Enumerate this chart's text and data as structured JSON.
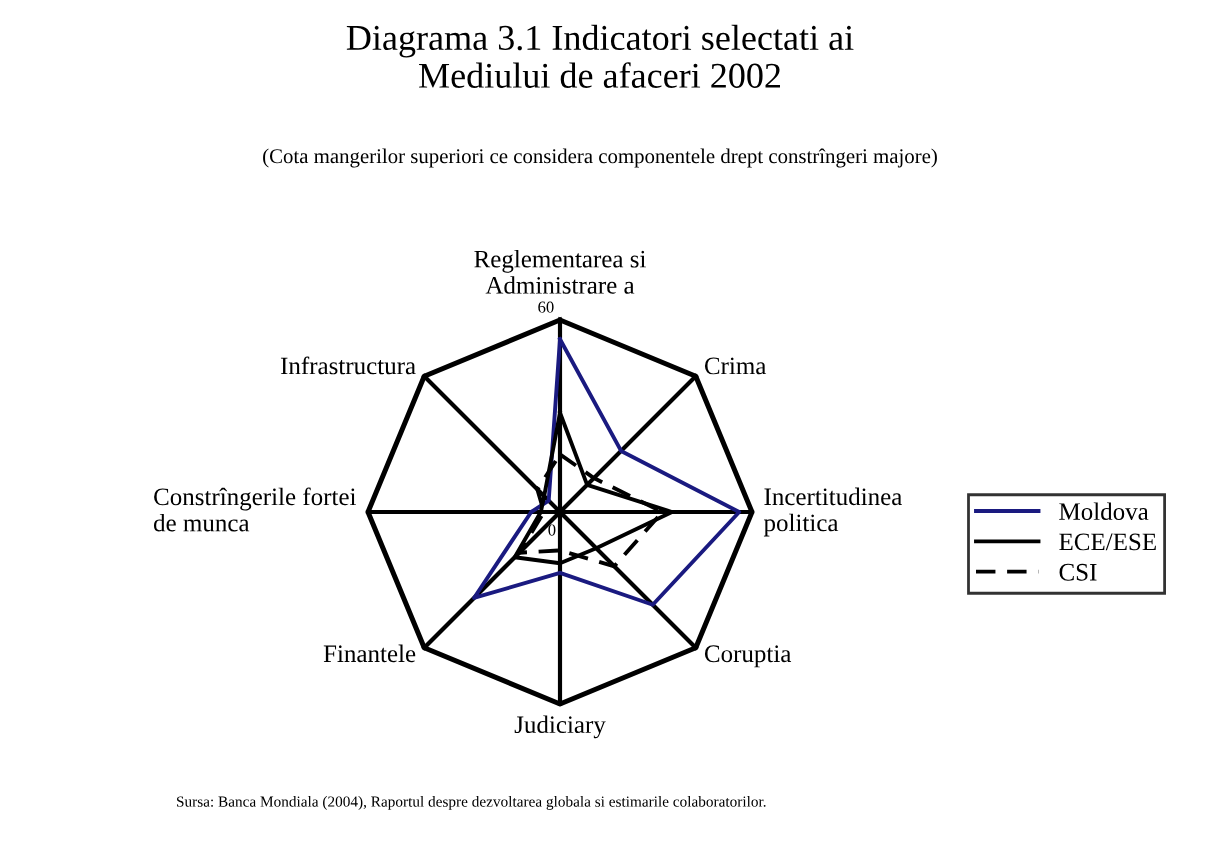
{
  "chart_data": {
    "type": "radar",
    "title": "Diagrama 3.1 Indicatori selectati ai\nMediului de afaceri 2002",
    "subtitle": "(Cota mangerilor superiori ce considera componentele drept constrîngeri majore)",
    "categories": [
      "Reglementarea si\nAdministrare a",
      "Crima",
      "Incertitudinea\npolitica",
      "Coruptia",
      "Judiciary",
      "Finantele",
      "Constrîngerile fortei\nde munca",
      "Infrastructura"
    ],
    "series": [
      {
        "name": "Moldova",
        "color": "#1a1a80",
        "line_style": "solid",
        "values": [
          54,
          27,
          56,
          41,
          19,
          38,
          9,
          5
        ]
      },
      {
        "name": "ECE/ESE",
        "color": "#000000",
        "line_style": "solid",
        "values": [
          31,
          12,
          35,
          16,
          16,
          20,
          6,
          7
        ]
      },
      {
        "name": "CSI",
        "color": "#000000",
        "line_style": "dashed",
        "values": [
          18,
          15,
          32,
          24,
          12,
          18,
          5,
          10
        ]
      }
    ],
    "ylim": [
      0,
      60
    ],
    "yticks": [
      0,
      60
    ],
    "grid": true,
    "legend": "right",
    "marker": "none",
    "annotations": [
      "Sursa: Banca Mondiala (2004), Raportul despre dezvoltarea globala si estimarile colaboratorilor."
    ]
  }
}
